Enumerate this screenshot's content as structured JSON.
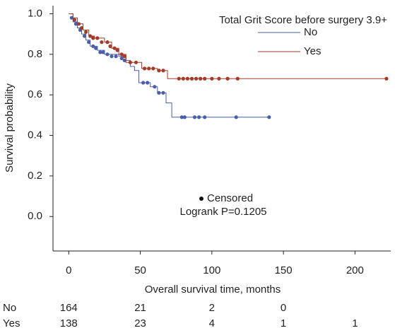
{
  "chart_data": {
    "type": "step",
    "xlabel": "Overall survival time, months",
    "ylabel": "Survival probability",
    "xlim": [
      -11,
      225
    ],
    "ylim": [
      -0.17,
      1.04
    ],
    "xticks": [
      0,
      50,
      100,
      150,
      200
    ],
    "yticks": [
      {
        "value": 0,
        "label": "0.0"
      },
      {
        "value": 0.2,
        "label": "0.2"
      },
      {
        "value": 0.4,
        "label": "0.4"
      },
      {
        "value": 0.6,
        "label": "0.6"
      },
      {
        "value": 0.8,
        "label": "0.8"
      },
      {
        "value": 1,
        "label": "1.0"
      }
    ],
    "legend_title": "Total Grit Score before surgery 3.9+",
    "legend_position": "upper right",
    "censor_label": "Censored",
    "annotation": "Logrank P=0.1205",
    "series": [
      {
        "name": "No",
        "color": "#4a5fa8",
        "x": [
          0,
          3,
          6,
          9,
          12,
          15,
          20,
          25,
          35,
          40,
          43,
          46,
          49,
          57,
          62,
          68,
          72,
          140
        ],
        "values": [
          1,
          0.96,
          0.93,
          0.9,
          0.87,
          0.84,
          0.82,
          0.8,
          0.79,
          0.77,
          0.74,
          0.72,
          0.66,
          0.64,
          0.61,
          0.56,
          0.49,
          0.49
        ],
        "censored_x": [
          2,
          5,
          8,
          11,
          14,
          17,
          19,
          22,
          24,
          27,
          30,
          33,
          37,
          39,
          52,
          55,
          60,
          63,
          66,
          79,
          81,
          88,
          91,
          95,
          117,
          140
        ],
        "censored_values": [
          0.98,
          0.95,
          0.92,
          0.89,
          0.86,
          0.84,
          0.83,
          0.81,
          0.81,
          0.8,
          0.79,
          0.79,
          0.78,
          0.77,
          0.66,
          0.66,
          0.64,
          0.61,
          0.61,
          0.49,
          0.49,
          0.49,
          0.49,
          0.49,
          0.49,
          0.49
        ]
      },
      {
        "name": "Yes",
        "color": "#a33a2a",
        "x": [
          0,
          3,
          6,
          10,
          14,
          18,
          25,
          30,
          35,
          40,
          51,
          62,
          69,
          222
        ],
        "values": [
          1,
          0.98,
          0.95,
          0.92,
          0.89,
          0.88,
          0.86,
          0.83,
          0.8,
          0.76,
          0.73,
          0.72,
          0.68,
          0.68
        ],
        "censored_x": [
          4,
          7,
          9,
          12,
          15,
          17,
          20,
          23,
          27,
          29,
          32,
          34,
          37,
          39,
          43,
          47,
          53,
          56,
          59,
          63,
          66,
          77,
          80,
          83,
          86,
          89,
          92,
          95,
          100,
          105,
          111,
          118,
          222
        ],
        "censored_values": [
          0.97,
          0.95,
          0.93,
          0.91,
          0.89,
          0.88,
          0.88,
          0.86,
          0.86,
          0.84,
          0.83,
          0.82,
          0.8,
          0.79,
          0.76,
          0.76,
          0.73,
          0.73,
          0.73,
          0.72,
          0.72,
          0.68,
          0.68,
          0.68,
          0.68,
          0.68,
          0.68,
          0.68,
          0.68,
          0.68,
          0.68,
          0.68,
          0.68
        ]
      }
    ],
    "risk_table": [
      [
        164,
        21,
        2,
        0,
        null
      ],
      [
        138,
        23,
        4,
        1,
        1
      ]
    ]
  }
}
